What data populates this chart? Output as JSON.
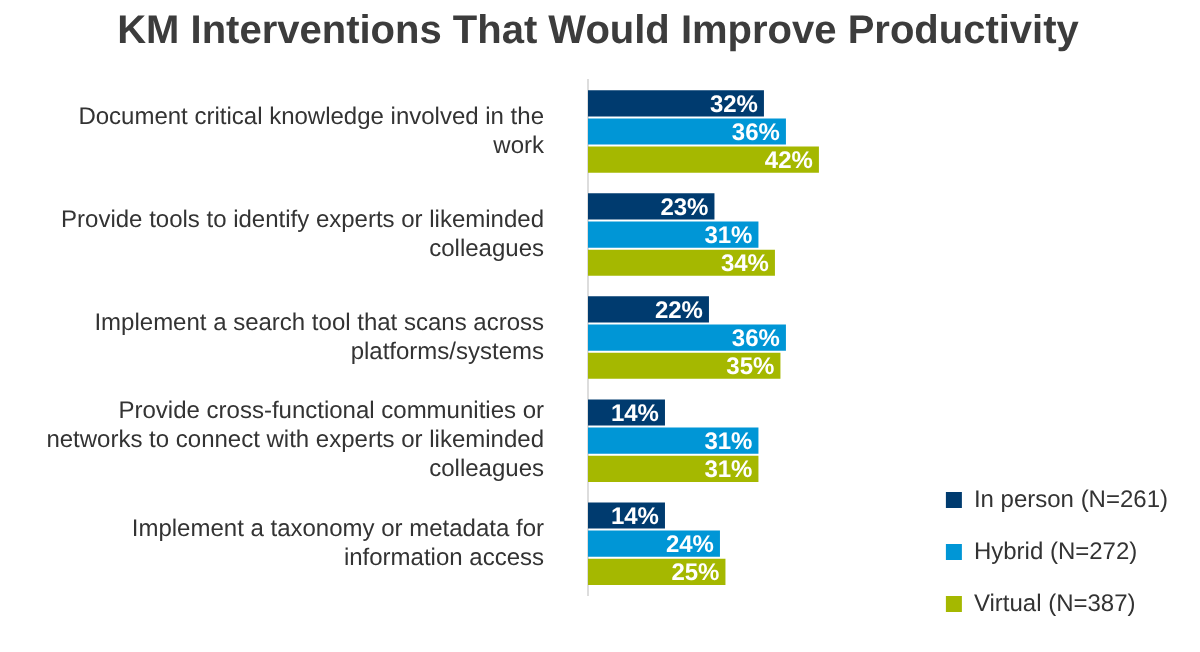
{
  "chart_data": {
    "type": "bar",
    "orientation": "horizontal",
    "title": "KM Interventions That Would Improve Productivity",
    "categories": [
      "Document critical knowledge involved in the work",
      "Provide tools to identify experts or likeminded colleagues",
      "Implement a search tool that scans across platforms/systems",
      "Provide cross-functional communities or networks to connect with experts or likeminded colleagues",
      "Implement a taxonomy or metadata for information access"
    ],
    "series": [
      {
        "name": "In person (N=261)",
        "color": "#003b6f",
        "values": [
          32,
          23,
          22,
          14,
          14
        ],
        "value_labels": [
          "32%",
          "23%",
          "22%",
          "14%",
          "14%"
        ]
      },
      {
        "name": "Hybrid (N=272)",
        "color": "#0096d6",
        "values": [
          36,
          31,
          36,
          31,
          24
        ],
        "value_labels": [
          "36%",
          "31%",
          "36%",
          "31%",
          "24%"
        ]
      },
      {
        "name": "Virtual (N=387)",
        "color": "#a5b800",
        "values": [
          42,
          34,
          35,
          31,
          25
        ],
        "value_labels": [
          "42%",
          "34%",
          "35%",
          "31%",
          "25%"
        ]
      }
    ],
    "tick_labels": "y",
    "legend": "bottom right"
  }
}
